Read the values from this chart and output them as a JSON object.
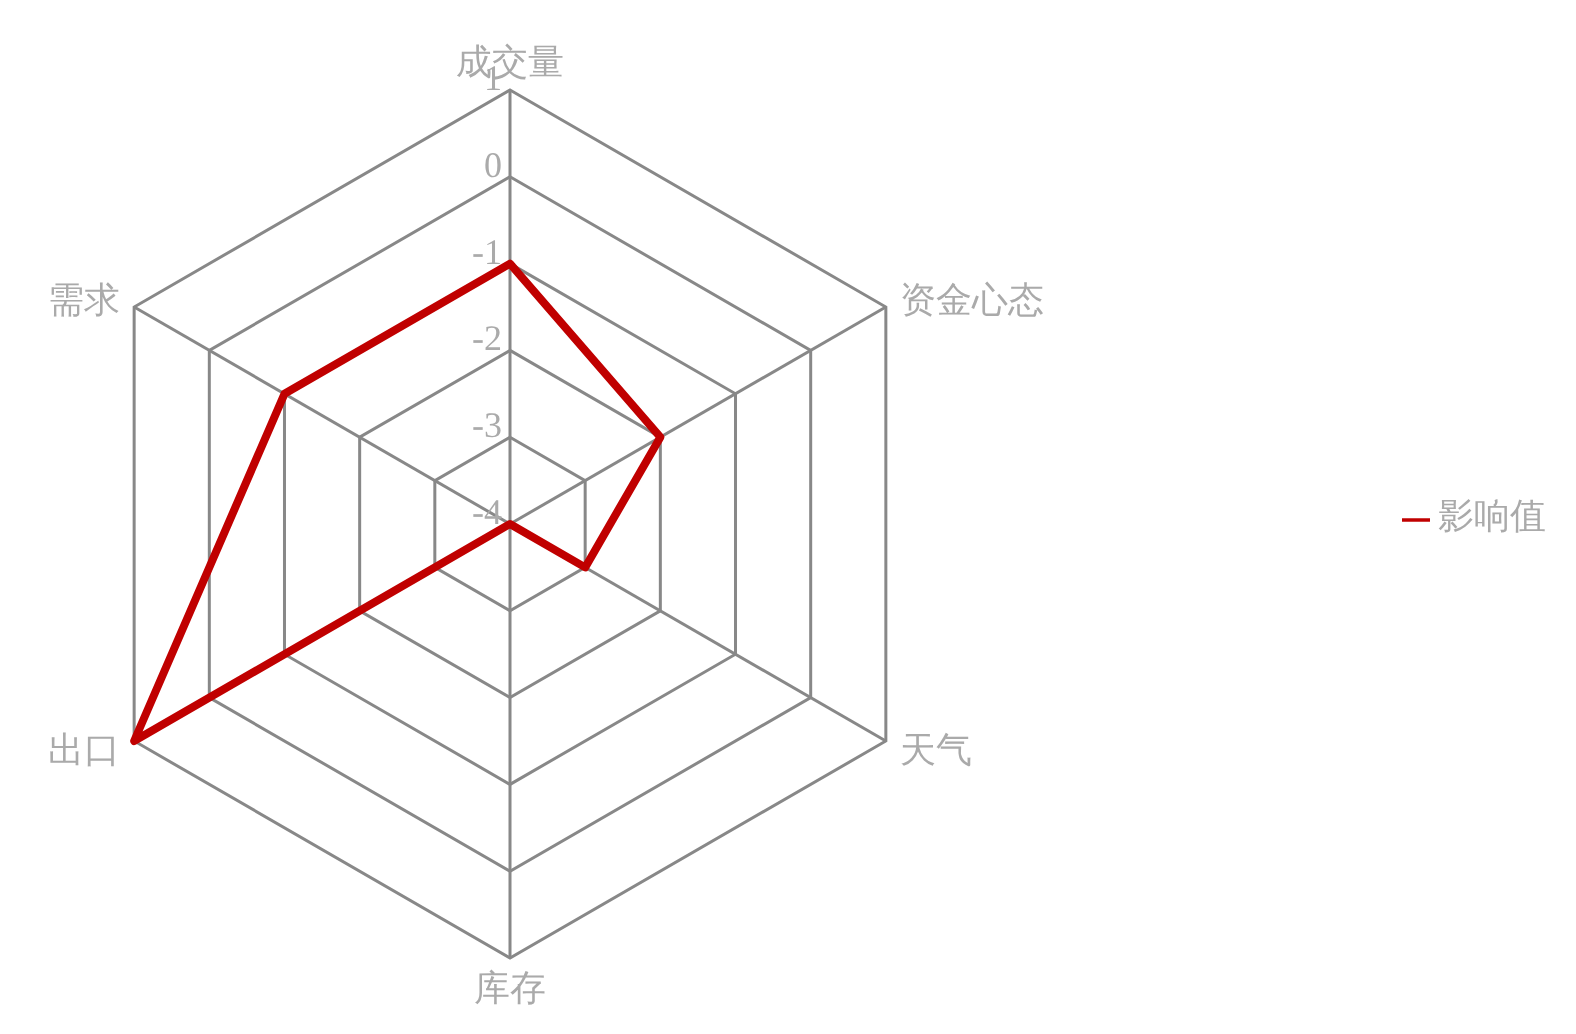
{
  "chart_data": {
    "type": "radar",
    "categories": [
      "成交量",
      "资金心态",
      "天气",
      "库存",
      "出口",
      "需求"
    ],
    "series": [
      {
        "name": "影响值",
        "color": "#c00000",
        "values": [
          -1,
          -2,
          -3,
          -4,
          1,
          -1
        ]
      }
    ],
    "ylim": [
      -4,
      1
    ],
    "yticks": [
      -4,
      -3,
      -2,
      -1,
      0,
      1
    ],
    "grid": true,
    "legend": "right",
    "marker": "none"
  }
}
